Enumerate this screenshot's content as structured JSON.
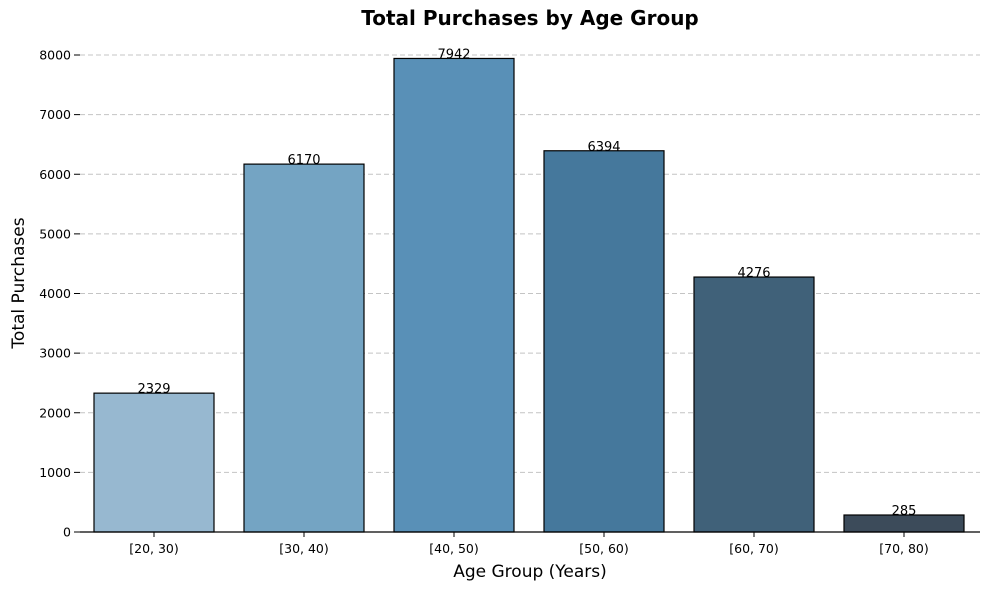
{
  "chart_data": {
    "type": "bar",
    "title": "Total Purchases by Age Group",
    "xlabel": "Age Group (Years)",
    "ylabel": "Total Purchases",
    "categories": [
      "[20, 30)",
      "[30, 40)",
      "[40, 50)",
      "[50, 60)",
      "[60, 70)",
      "[70, 80)"
    ],
    "values": [
      2329,
      6170,
      7942,
      6394,
      4276,
      285
    ],
    "data_labels": [
      "2329",
      "6170",
      "7942",
      "6394",
      "4276",
      "285"
    ],
    "colors": [
      "#97b8d0",
      "#74a4c3",
      "#5990b7",
      "#45789c",
      "#406179",
      "#3c4b5a"
    ],
    "ylim": [
      0,
      8000
    ],
    "yticks": [
      0,
      1000,
      2000,
      3000,
      4000,
      5000,
      6000,
      7000,
      8000
    ],
    "ytick_labels": [
      "0",
      "1000",
      "2000",
      "3000",
      "4000",
      "5000",
      "6000",
      "7000",
      "8000"
    ],
    "grid": "y-dashed",
    "legend": "none"
  }
}
